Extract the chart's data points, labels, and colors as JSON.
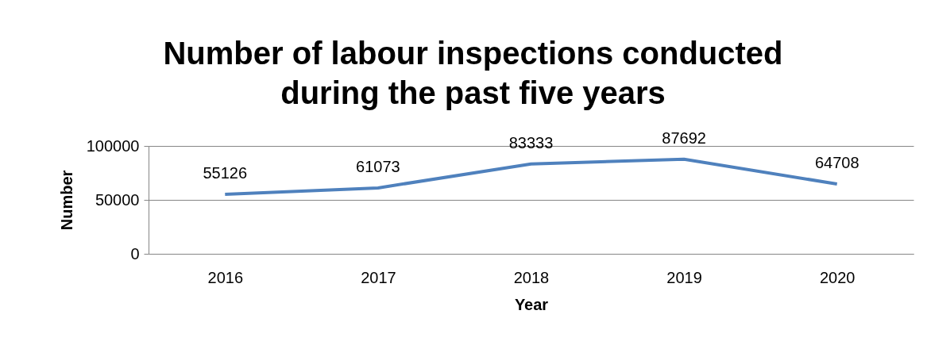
{
  "chart_data": {
    "type": "line",
    "title": "Number of labour inspections conducted during the past five years",
    "xlabel": "Year",
    "ylabel": "Number",
    "categories": [
      "2016",
      "2017",
      "2018",
      "2019",
      "2020"
    ],
    "series": [
      {
        "color": "#4f81bd",
        "values": [
          55126,
          61073,
          83333,
          87692,
          64708
        ]
      }
    ],
    "ylim": [
      0,
      100000
    ],
    "yticks": [
      0,
      50000,
      100000
    ],
    "grid": "y",
    "data_labels": true,
    "legend": false,
    "marker": "none"
  }
}
